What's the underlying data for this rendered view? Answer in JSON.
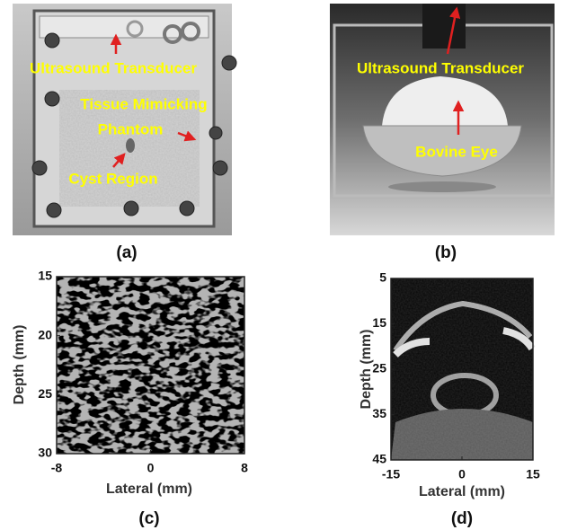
{
  "panels": [
    {
      "label": "(a)",
      "annotations": [
        "Ultrasound Transducer",
        "Tissue Mimicking",
        "Phantom",
        "Cyst Region"
      ]
    },
    {
      "label": "(b)",
      "annotations": [
        "Ultrasound Transducer",
        "Bovine Eye"
      ]
    },
    {
      "label": "(c)",
      "x_label": "Lateral (mm)",
      "y_label": "Depth (mm)",
      "xlim": [
        -8,
        8
      ],
      "xticks": [
        -8,
        0,
        8
      ],
      "ylim": [
        15,
        30
      ],
      "yticks": [
        15,
        20,
        25,
        30
      ]
    },
    {
      "label": "(d)",
      "x_label": "Lateral (mm)",
      "y_label": "Depth (mm)",
      "xlim": [
        -15,
        15
      ],
      "xticks": [
        -15,
        0,
        15
      ],
      "ylim": [
        5,
        45
      ],
      "yticks": [
        5,
        15,
        25,
        35,
        45
      ]
    }
  ]
}
